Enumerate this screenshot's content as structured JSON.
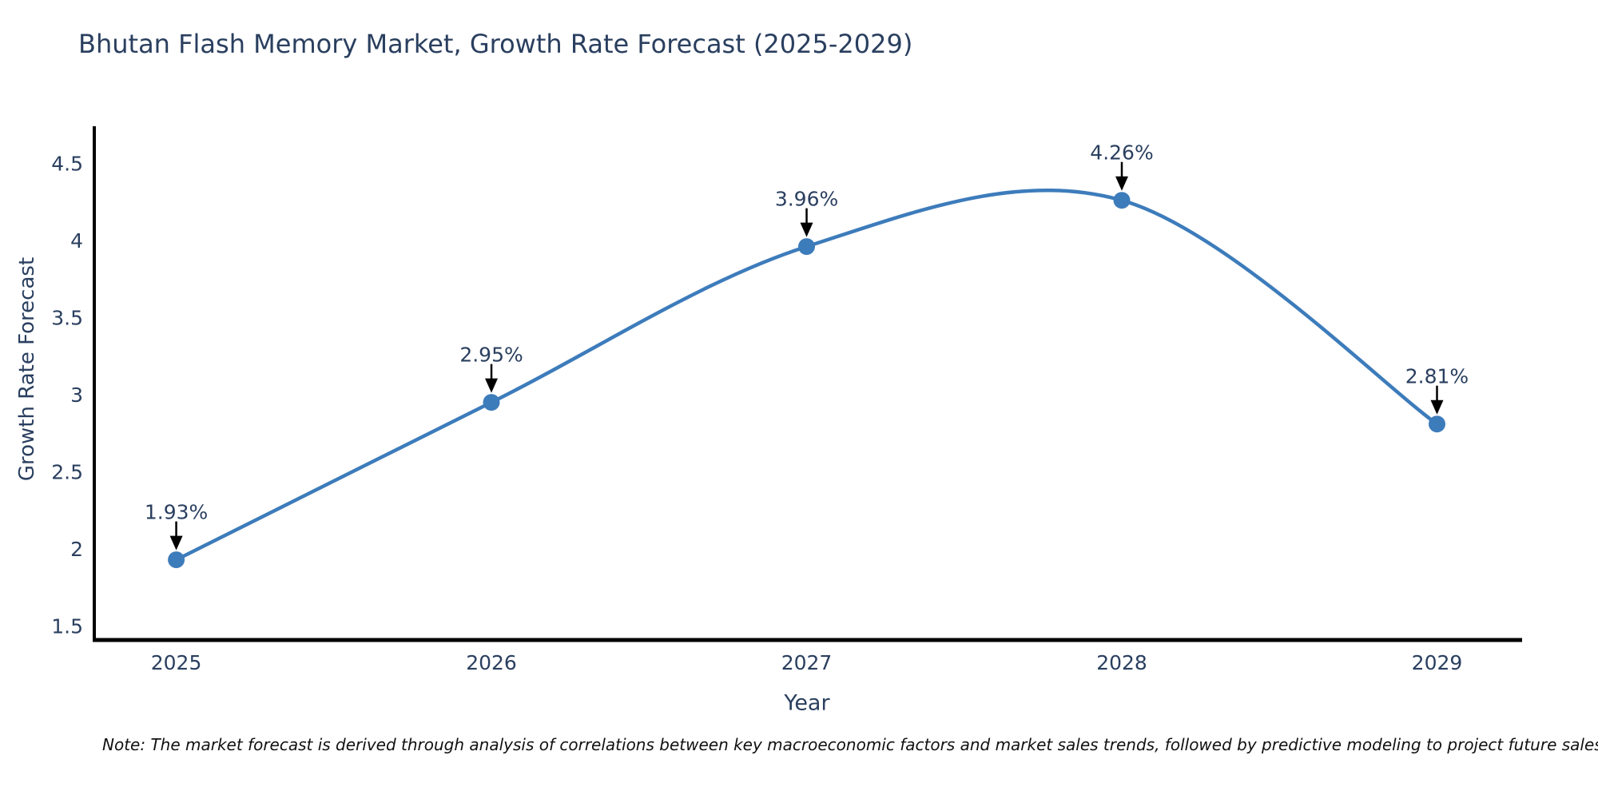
{
  "chart_data": {
    "type": "line",
    "title": "Bhutan Flash Memory Market, Growth Rate Forecast (2025-2029)",
    "xlabel": "Year",
    "ylabel": "Growth Rate Forecast",
    "line_shape": "spline",
    "grid": false,
    "legend_position": "none",
    "x": [
      2025,
      2026,
      2027,
      2028,
      2029
    ],
    "series": [
      {
        "name": "Growth Rate Forecast",
        "values": [
          1.93,
          2.95,
          3.96,
          4.26,
          2.81
        ]
      }
    ],
    "point_labels": [
      "1.93%",
      "2.95%",
      "3.96%",
      "4.26%",
      "2.81%"
    ],
    "x_tick_labels": [
      "2025",
      "2026",
      "2027",
      "2028",
      "2029"
    ],
    "y_ticks": [
      1.5,
      2,
      2.5,
      3,
      3.5,
      4,
      4.5
    ],
    "y_tick_labels": [
      "1.5",
      "2",
      "2.5",
      "3",
      "3.5",
      "4",
      "4.5"
    ],
    "xlim": [
      2024.74,
      2029.27
    ],
    "ylim": [
      1.41,
      4.74
    ],
    "colors": {
      "line": "#3d7cbb",
      "marker": "#3d7cbb",
      "arrow": "#000000",
      "axis": "#000000",
      "tick_text": "#2a3f5f",
      "title_text": "#2a3f5f"
    },
    "note": "Note: The market forecast is derived through analysis of correlations between key macroeconomic factors and market sales trends, followed by predictive modeling to project future sales"
  }
}
